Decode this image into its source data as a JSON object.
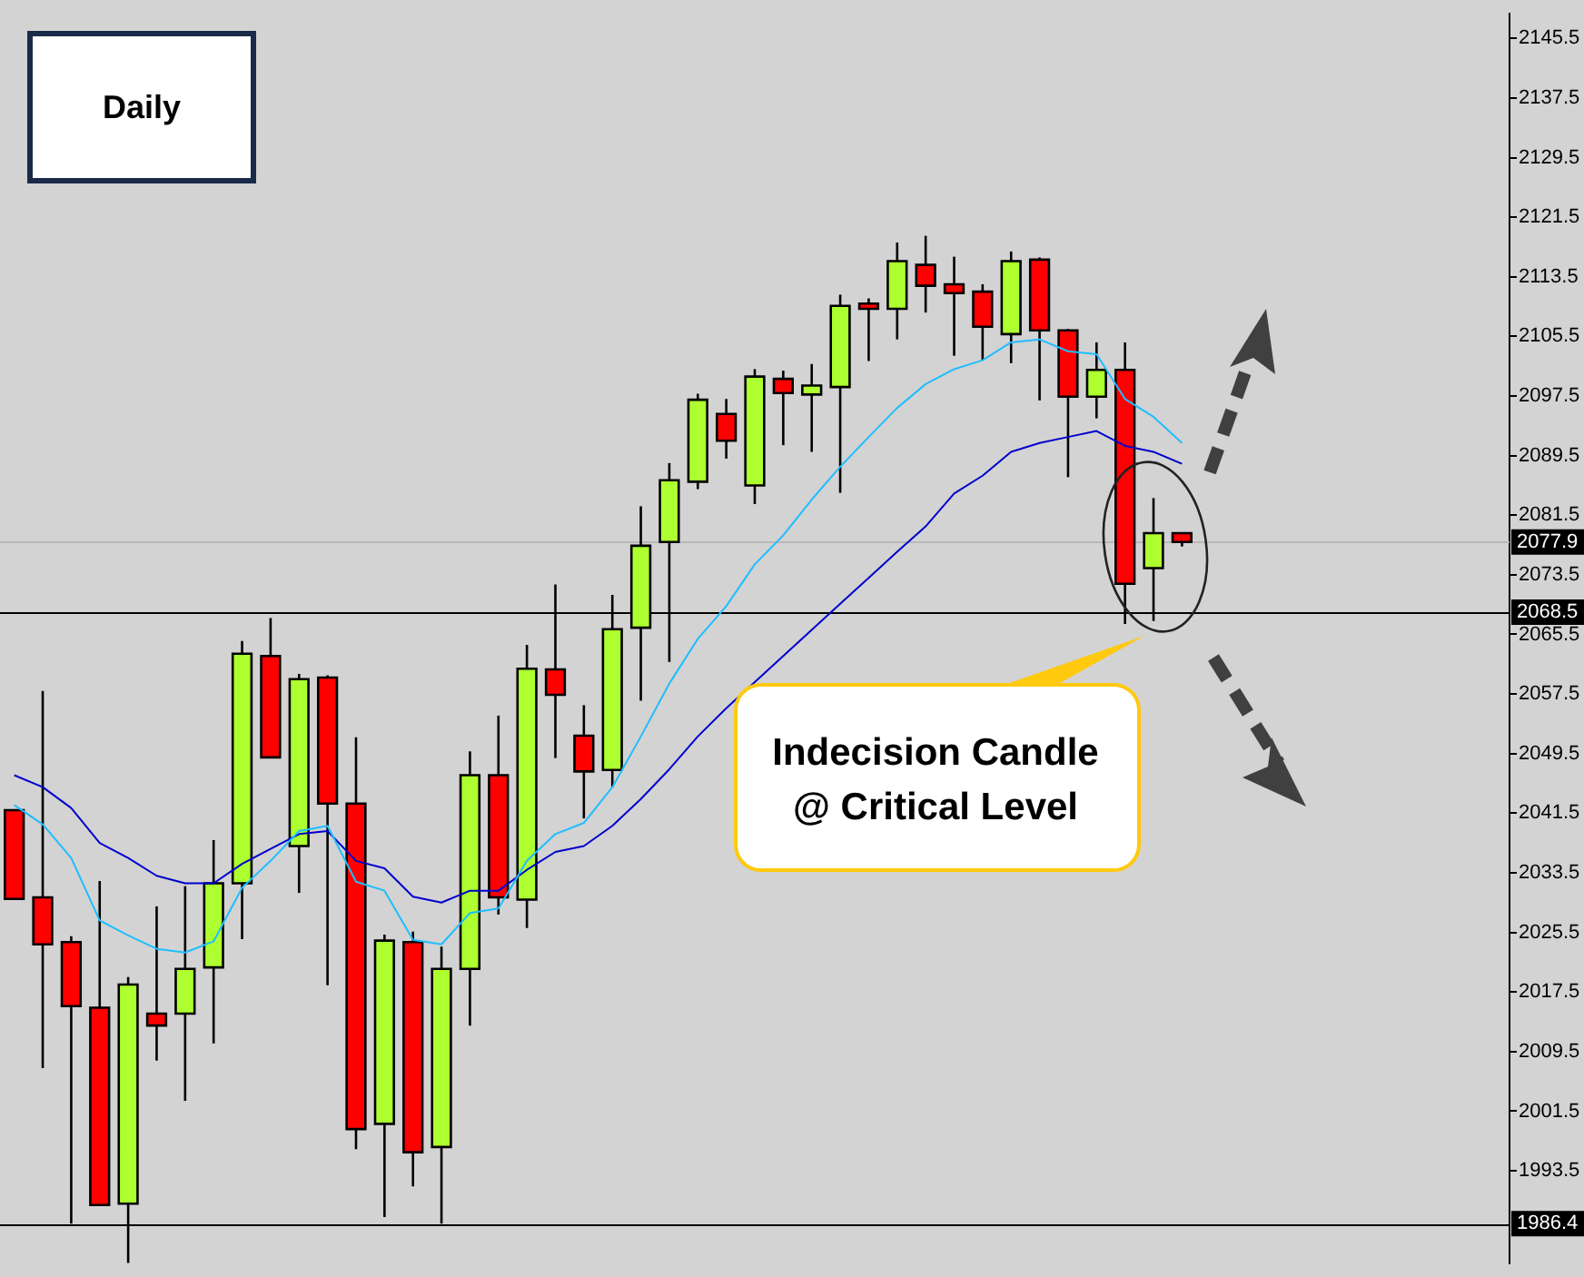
{
  "chart_data": {
    "type": "candlestick",
    "title": "Daily",
    "categories": [
      null,
      null,
      null,
      null,
      null,
      null,
      null,
      null,
      null,
      null,
      null,
      null,
      null,
      null,
      null,
      null,
      null,
      null,
      null,
      null,
      null,
      null,
      null,
      null,
      null,
      null,
      null,
      null,
      null,
      null,
      null,
      null,
      null,
      null,
      null,
      null,
      null,
      null,
      null,
      null,
      null,
      null,
      null,
      null,
      null,
      null,
      null,
      null,
      null,
      null,
      null,
      null,
      null
    ],
    "ohlc": [
      [
        2041.9,
        2041.9,
        2030.0,
        2030.0
      ],
      [
        2030.2,
        2057.9,
        2007.3,
        2023.9
      ],
      [
        2024.2,
        2025.0,
        1986.4,
        2015.6
      ],
      [
        2015.4,
        2032.4,
        1988.9,
        1988.9
      ],
      [
        1989.1,
        2019.5,
        1981.1,
        2018.5
      ],
      [
        2014.6,
        2029.0,
        2008.3,
        2013.0
      ],
      [
        2014.6,
        2031.7,
        2002.9,
        2020.6
      ],
      [
        2020.8,
        2037.9,
        2010.6,
        2032.1
      ],
      [
        2032.1,
        2064.6,
        2024.6,
        2062.9
      ],
      [
        2062.6,
        2067.7,
        2049.0,
        2049.0
      ],
      [
        2037.1,
        2060.2,
        2030.8,
        2059.5
      ],
      [
        2059.7,
        2060.0,
        2018.4,
        2042.8
      ],
      [
        2042.8,
        2051.7,
        1996.4,
        1999.1
      ],
      [
        1999.8,
        2025.2,
        1987.3,
        2024.4
      ],
      [
        2024.2,
        2025.6,
        1991.4,
        1996.0
      ],
      [
        1996.7,
        2023.6,
        1986.4,
        2020.6
      ],
      [
        2020.6,
        2049.8,
        2013.0,
        2046.6
      ],
      [
        2046.6,
        2054.6,
        2027.9,
        2030.2
      ],
      [
        2029.9,
        2064.1,
        2026.1,
        2060.9
      ],
      [
        2060.8,
        2072.2,
        2048.9,
        2057.4
      ],
      [
        2051.9,
        2056.0,
        2040.8,
        2047.1
      ],
      [
        2047.3,
        2070.8,
        2045.0,
        2066.2
      ],
      [
        2066.4,
        2082.7,
        2056.6,
        2077.4
      ],
      [
        2077.9,
        2088.5,
        2061.8,
        2086.2
      ],
      [
        2086.0,
        2097.8,
        2085.0,
        2097.0
      ],
      [
        2095.1,
        2097.1,
        2089.1,
        2091.5
      ],
      [
        2085.5,
        2101.1,
        2083.0,
        2100.1
      ],
      [
        2099.8,
        2100.9,
        2090.9,
        2097.9
      ],
      [
        2097.7,
        2101.8,
        2090.0,
        2098.9
      ],
      [
        2098.7,
        2111.1,
        2084.5,
        2109.6
      ],
      [
        2109.9,
        2110.6,
        2102.2,
        2109.2
      ],
      [
        2109.2,
        2118.1,
        2105.1,
        2115.6
      ],
      [
        2115.1,
        2119.0,
        2108.7,
        2112.3
      ],
      [
        2112.5,
        2116.2,
        2102.9,
        2111.3
      ],
      [
        2111.5,
        2112.5,
        2102.3,
        2106.8
      ],
      [
        2105.8,
        2116.9,
        2101.9,
        2115.6
      ],
      [
        2115.8,
        2116.1,
        2096.9,
        2106.3
      ],
      [
        2106.3,
        2106.5,
        2086.6,
        2097.4
      ],
      [
        2097.4,
        2104.7,
        2094.5,
        2101.0
      ],
      [
        2101.0,
        2104.7,
        2066.9,
        2072.3
      ],
      [
        2074.4,
        2083.8,
        2067.3,
        2079.1
      ],
      [
        2079.1,
        2079.1,
        2077.3,
        2077.9
      ],
      null,
      null,
      null,
      null,
      null,
      null,
      null,
      null,
      null,
      null,
      null
    ],
    "colors": [
      "#ff0000",
      "#ff0000",
      "#ff0000",
      "#ff0000",
      "#adff2f",
      "#ff0000",
      "#adff2f",
      "#adff2f",
      "#adff2f",
      "#ff0000",
      "#adff2f",
      "#ff0000",
      "#ff0000",
      "#adff2f",
      "#ff0000",
      "#adff2f",
      "#adff2f",
      "#ff0000",
      "#adff2f",
      "#ff0000",
      "#ff0000",
      "#adff2f",
      "#adff2f",
      "#adff2f",
      "#adff2f",
      "#ff0000",
      "#adff2f",
      "#ff0000",
      "#adff2f",
      "#adff2f",
      "#ff0000",
      "#adff2f",
      "#ff0000",
      "#ff0000",
      "#ff0000",
      "#adff2f",
      "#ff0000",
      "#ff0000",
      "#adff2f",
      "#ff0000",
      "#adff2f",
      "#ff0000",
      null,
      null,
      null,
      null,
      null,
      null,
      null,
      null,
      null,
      null,
      null
    ],
    "series": [
      {
        "type": "line",
        "color": "#1ebeff",
        "values": [
          2042.6,
          2040.0,
          2035.5,
          2027.1,
          2025.1,
          2023.3,
          2022.8,
          2024.3,
          2031.5,
          2035.1,
          2039.1,
          2039.8,
          2032.3,
          2031.1,
          2024.5,
          2023.9,
          2028.1,
          2028.7,
          2035.1,
          2038.7,
          2040.2,
          2045.0,
          2051.8,
          2058.9,
          2064.9,
          2069.3,
          2074.9,
          2078.8,
          2083.6,
          2088.0,
          2092.0,
          2095.9,
          2099.1,
          2101.1,
          2102.3,
          2104.7,
          2105.1,
          2103.5,
          2103.1,
          2097.1,
          2094.7,
          2091.2,
          null,
          null,
          null,
          null,
          null,
          null,
          null,
          null,
          null,
          null,
          null
        ]
      },
      {
        "type": "line",
        "color": "#0000cd",
        "values": [
          2046.6,
          2045.0,
          2042.2,
          2037.5,
          2035.5,
          2033.1,
          2032.1,
          2032.1,
          2034.7,
          2036.7,
          2038.7,
          2039.1,
          2035.1,
          2034.1,
          2030.3,
          2029.5,
          2031.1,
          2031.1,
          2033.9,
          2036.3,
          2037.1,
          2039.8,
          2043.4,
          2047.4,
          2051.8,
          2055.6,
          2059.1,
          2062.6,
          2066.1,
          2069.6,
          2073.1,
          2076.6,
          2080.0,
          2084.4,
          2086.8,
          2090.0,
          2091.2,
          2092.0,
          2092.8,
          2090.8,
          2090.0,
          2088.4,
          null,
          null,
          null,
          null,
          null,
          null,
          null,
          null,
          null,
          null,
          null
        ]
      }
    ],
    "ylim": [
      1981.1,
      2148.8
    ],
    "yticks": [
      1993.5,
      2001.5,
      2009.5,
      2017.5,
      2025.5,
      2033.5,
      2041.5,
      2049.5,
      2057.5,
      2065.5,
      2073.5,
      2081.5,
      2089.5,
      2097.5,
      2105.5,
      2113.5,
      2121.5,
      2129.5,
      2137.5,
      2145.5
    ],
    "ref_lines": [
      {
        "axis": "y",
        "value": 2077.9,
        "label": "2077.9",
        "color": "#b9b9b9"
      },
      {
        "axis": "y",
        "value": 2068.5,
        "label": "2068.5",
        "color": "#000000"
      },
      {
        "axis": "y",
        "value": 1986.4,
        "label": "1986.4",
        "color": "#000000"
      }
    ],
    "annotations": [
      "Indecision Candle @ Critical Level"
    ],
    "tick_labels": "y",
    "grid": false,
    "legend": false,
    "marker": "none"
  }
}
